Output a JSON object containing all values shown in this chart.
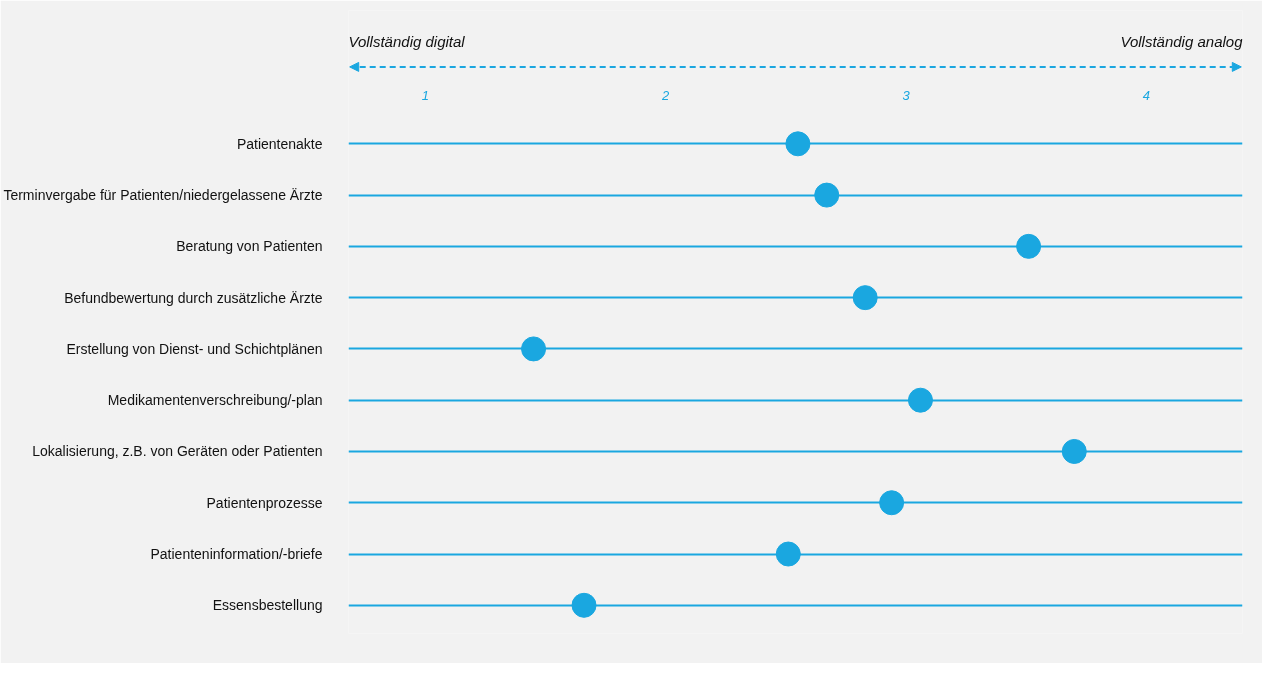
{
  "chart_data": {
    "type": "scatter",
    "orientation": "horizontal",
    "categories": [
      "Patientenakte",
      "Terminvergabe für Patienten/niedergelassene Ärzte",
      "Beratung von Patienten",
      "Befundbewertung durch zusätzliche Ärzte",
      "Erstellung von Dienst- und Schichtplänen",
      "Medikamentenverschreibung/-plan",
      "Lokalisierung, z.B. von Geräten oder Patienten",
      "Patientenprozesse",
      "Patienteninformation/-briefe",
      "Essensbestellung"
    ],
    "series": [
      {
        "color": "#1aa7e0",
        "values": [
          2.55,
          2.67,
          3.51,
          2.83,
          1.45,
          3.06,
          3.7,
          2.94,
          2.51,
          1.66
        ]
      }
    ],
    "xlim": [
      0.68,
      4.4
    ],
    "xticks": [
      1,
      2,
      3,
      4
    ],
    "annotations": [
      "Vollständig digital",
      "Vollständig analog"
    ],
    "grid": "y",
    "marker": "circle"
  }
}
